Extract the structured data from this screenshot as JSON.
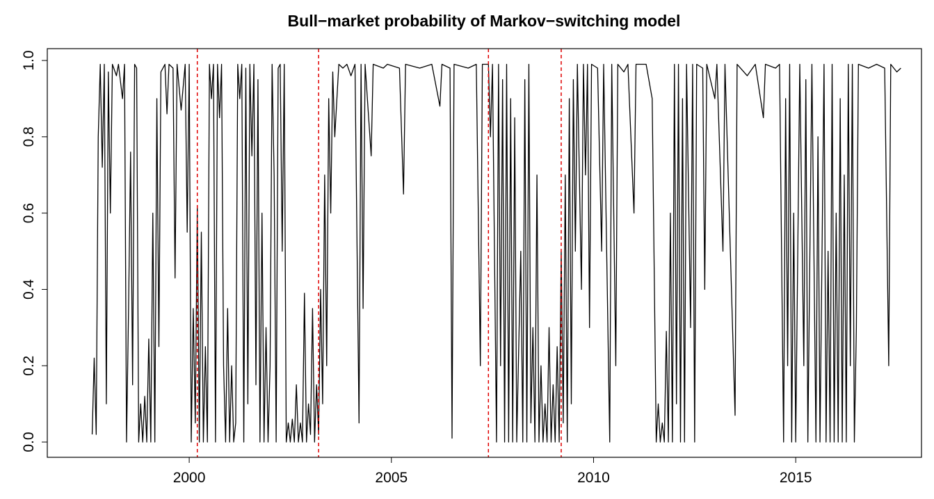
{
  "chart_data": {
    "type": "line",
    "title": "Bull−market probability of Markov−switching model",
    "xlim": [
      1996.49,
      2018.11
    ],
    "ylim": [
      -0.04,
      1.031
    ],
    "xticks": [
      2000,
      2005,
      2010,
      2015
    ],
    "yticks": [
      {
        "value": 0,
        "label": "0.0"
      },
      0.2,
      0.4,
      0.6,
      0.8,
      {
        "value": 1,
        "label": "1.0"
      }
    ],
    "vlines": [
      2000.2,
      2003.2,
      2007.4,
      2009.2
    ],
    "vline_color": "#e00000",
    "color": "#000000",
    "x": [
      1997.6,
      1997.65,
      1997.7,
      1997.75,
      1997.8,
      1997.85,
      1997.9,
      1997.95,
      1998.0,
      1998.05,
      1998.1,
      1998.2,
      1998.25,
      1998.35,
      1998.4,
      1998.45,
      1998.5,
      1998.55,
      1998.6,
      1998.65,
      1998.7,
      1998.75,
      1998.8,
      1998.85,
      1998.9,
      1998.95,
      1999.0,
      1999.05,
      1999.1,
      1999.15,
      1999.2,
      1999.25,
      1999.3,
      1999.4,
      1999.45,
      1999.5,
      1999.6,
      1999.65,
      1999.7,
      1999.8,
      1999.9,
      1999.95,
      2000.0,
      2000.05,
      2000.1,
      2000.15,
      2000.2,
      2000.25,
      2000.3,
      2000.35,
      2000.4,
      2000.45,
      2000.5,
      2000.55,
      2000.6,
      2000.65,
      2000.7,
      2000.75,
      2000.8,
      2000.85,
      2000.9,
      2000.95,
      2001.0,
      2001.05,
      2001.1,
      2001.15,
      2001.2,
      2001.25,
      2001.3,
      2001.35,
      2001.4,
      2001.45,
      2001.5,
      2001.55,
      2001.6,
      2001.65,
      2001.7,
      2001.75,
      2001.8,
      2001.85,
      2001.9,
      2001.95,
      2002.0,
      2002.05,
      2002.1,
      2002.15,
      2002.2,
      2002.25,
      2002.3,
      2002.35,
      2002.4,
      2002.45,
      2002.5,
      2002.55,
      2002.6,
      2002.65,
      2002.7,
      2002.75,
      2002.8,
      2002.85,
      2002.9,
      2002.95,
      2003.0,
      2003.05,
      2003.1,
      2003.15,
      2003.2,
      2003.25,
      2003.3,
      2003.35,
      2003.4,
      2003.45,
      2003.5,
      2003.55,
      2003.6,
      2003.7,
      2003.8,
      2003.9,
      2004.0,
      2004.1,
      2004.2,
      2004.25,
      2004.3,
      2004.35,
      2004.5,
      2004.55,
      2004.8,
      2004.9,
      2005.2,
      2005.3,
      2005.35,
      2005.7,
      2006.0,
      2006.2,
      2006.25,
      2006.45,
      2006.5,
      2006.55,
      2006.9,
      2007.1,
      2007.2,
      2007.25,
      2007.4,
      2007.45,
      2007.5,
      2007.6,
      2007.65,
      2007.7,
      2007.75,
      2007.8,
      2007.85,
      2007.9,
      2007.95,
      2008.0,
      2008.05,
      2008.1,
      2008.2,
      2008.25,
      2008.3,
      2008.35,
      2008.4,
      2008.45,
      2008.5,
      2008.55,
      2008.6,
      2008.65,
      2008.7,
      2008.75,
      2008.8,
      2008.85,
      2008.9,
      2008.95,
      2009.0,
      2009.05,
      2009.1,
      2009.15,
      2009.2,
      2009.25,
      2009.3,
      2009.35,
      2009.4,
      2009.45,
      2009.5,
      2009.55,
      2009.6,
      2009.7,
      2009.75,
      2009.8,
      2009.85,
      2009.9,
      2009.95,
      2010.1,
      2010.2,
      2010.25,
      2010.4,
      2010.45,
      2010.55,
      2010.6,
      2010.75,
      2010.85,
      2011.0,
      2011.05,
      2011.3,
      2011.45,
      2011.55,
      2011.6,
      2011.65,
      2011.7,
      2011.75,
      2011.8,
      2011.85,
      2011.9,
      2011.95,
      2012.0,
      2012.05,
      2012.1,
      2012.15,
      2012.2,
      2012.25,
      2012.3,
      2012.4,
      2012.45,
      2012.5,
      2012.55,
      2012.7,
      2012.75,
      2012.8,
      2013.0,
      2013.05,
      2013.2,
      2013.25,
      2013.5,
      2013.55,
      2013.8,
      2014.0,
      2014.2,
      2014.25,
      2014.5,
      2014.6,
      2014.7,
      2014.75,
      2014.8,
      2014.85,
      2014.9,
      2014.95,
      2015.0,
      2015.1,
      2015.2,
      2015.25,
      2015.3,
      2015.4,
      2015.5,
      2015.55,
      2015.6,
      2015.7,
      2015.75,
      2015.8,
      2015.85,
      2015.9,
      2015.95,
      2016.0,
      2016.05,
      2016.1,
      2016.15,
      2016.2,
      2016.25,
      2016.3,
      2016.35,
      2016.4,
      2016.45,
      2016.5,
      2016.55,
      2016.8,
      2017.0,
      2017.2,
      2017.3,
      2017.35,
      2017.5,
      2017.6
    ],
    "values": [
      0.02,
      0.22,
      0.02,
      0.8,
      0.99,
      0.72,
      0.99,
      0.1,
      0.97,
      0.6,
      0.99,
      0.96,
      0.99,
      0.9,
      0.99,
      0.0,
      0.35,
      0.76,
      0.15,
      0.99,
      0.98,
      0.0,
      0.1,
      0.0,
      0.12,
      0.0,
      0.27,
      0.0,
      0.6,
      0.0,
      0.9,
      0.25,
      0.97,
      0.99,
      0.86,
      0.99,
      0.98,
      0.43,
      0.99,
      0.87,
      0.99,
      0.55,
      0.99,
      0.0,
      0.35,
      0.05,
      0.62,
      0.0,
      0.55,
      0.0,
      0.25,
      0.0,
      0.99,
      0.9,
      0.99,
      0.0,
      0.99,
      0.85,
      0.99,
      0.2,
      0.0,
      0.35,
      0.0,
      0.2,
      0.0,
      0.05,
      0.99,
      0.9,
      0.99,
      0.0,
      0.98,
      0.1,
      0.99,
      0.75,
      0.99,
      0.15,
      0.95,
      0.0,
      0.6,
      0.0,
      0.3,
      0.0,
      0.2,
      0.99,
      0.7,
      0.0,
      0.98,
      0.99,
      0.5,
      0.99,
      0.0,
      0.05,
      0.0,
      0.06,
      0.0,
      0.15,
      0.0,
      0.05,
      0.0,
      0.39,
      0.0,
      0.1,
      0.02,
      0.35,
      0.0,
      0.15,
      0.02,
      0.4,
      0.1,
      0.7,
      0.2,
      0.9,
      0.6,
      0.97,
      0.8,
      0.99,
      0.98,
      0.99,
      0.96,
      0.99,
      0.05,
      0.99,
      0.35,
      0.99,
      0.75,
      0.99,
      0.98,
      0.99,
      0.98,
      0.65,
      0.99,
      0.98,
      0.99,
      0.88,
      0.99,
      0.98,
      0.01,
      0.99,
      0.98,
      0.99,
      0.2,
      0.99,
      0.99,
      0.8,
      0.99,
      0.0,
      0.99,
      0.2,
      0.95,
      0.0,
      0.99,
      0.0,
      0.9,
      0.0,
      0.85,
      0.0,
      0.5,
      0.0,
      0.95,
      0.0,
      0.99,
      0.05,
      0.3,
      0.0,
      0.7,
      0.0,
      0.2,
      0.0,
      0.1,
      0.0,
      0.3,
      0.0,
      0.15,
      0.0,
      0.25,
      0.0,
      0.5,
      0.05,
      0.7,
      0.0,
      0.9,
      0.1,
      0.95,
      0.5,
      0.99,
      0.4,
      0.99,
      0.7,
      0.99,
      0.3,
      0.99,
      0.98,
      0.5,
      0.99,
      0.0,
      0.99,
      0.2,
      0.99,
      0.97,
      0.99,
      0.6,
      0.99,
      0.99,
      0.9,
      0.0,
      0.1,
      0.0,
      0.05,
      0.0,
      0.29,
      0.0,
      0.6,
      0.0,
      0.99,
      0.1,
      0.99,
      0.0,
      0.9,
      0.0,
      0.99,
      0.3,
      0.99,
      0.0,
      0.99,
      0.98,
      0.4,
      0.99,
      0.9,
      0.99,
      0.5,
      0.99,
      0.07,
      0.99,
      0.96,
      0.99,
      0.85,
      0.99,
      0.98,
      0.99,
      0.0,
      0.9,
      0.2,
      0.99,
      0.0,
      0.6,
      0.0,
      0.99,
      0.2,
      0.95,
      0.0,
      0.99,
      0.0,
      0.8,
      0.0,
      0.99,
      0.0,
      0.5,
      0.0,
      0.99,
      0.0,
      0.6,
      0.0,
      0.9,
      0.0,
      0.7,
      0.0,
      0.99,
      0.2,
      0.99,
      0.0,
      0.3,
      0.99,
      0.98,
      0.99,
      0.98,
      0.2,
      0.99,
      0.97,
      0.98
    ]
  }
}
